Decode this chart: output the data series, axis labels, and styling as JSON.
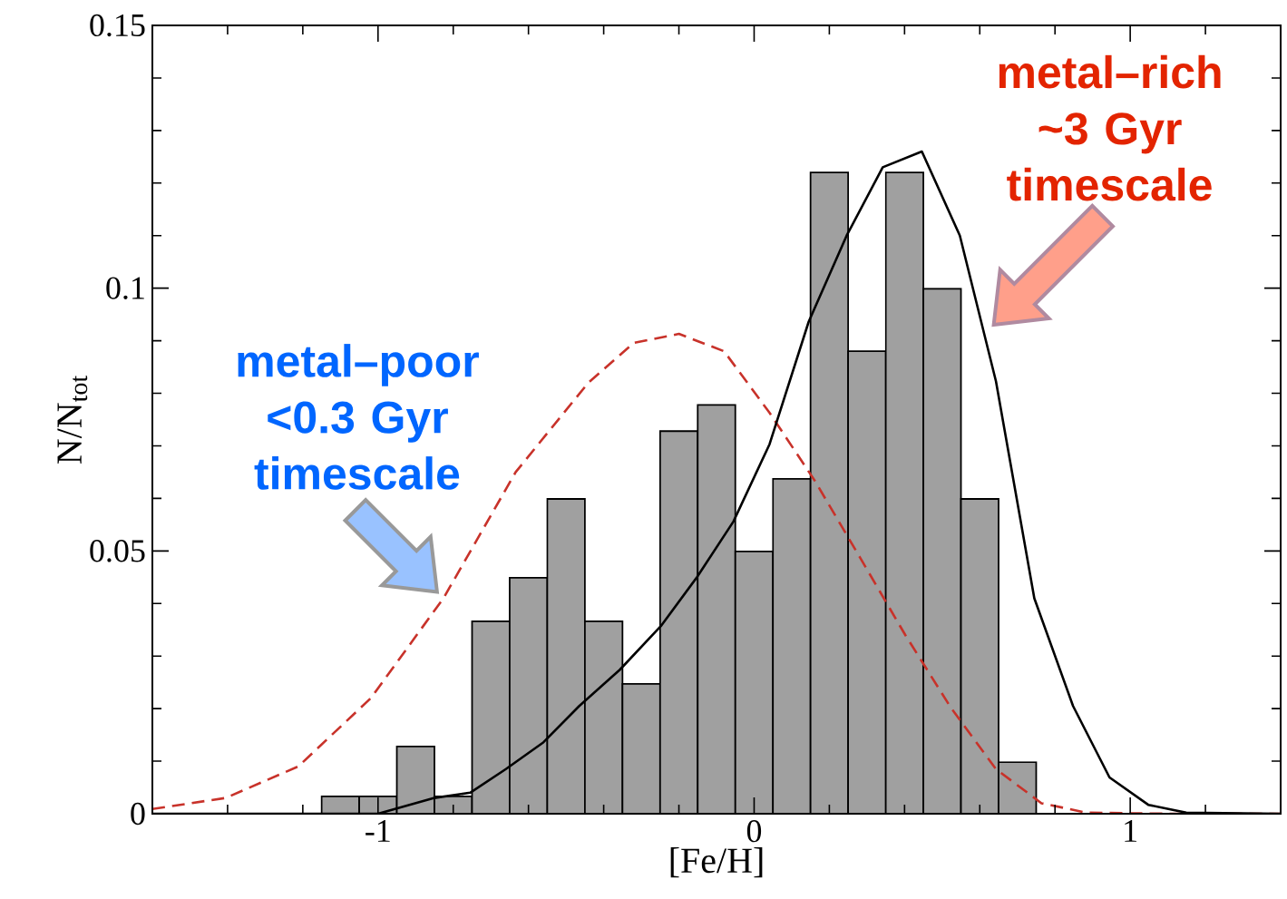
{
  "chart_data": {
    "type": "histogram",
    "xlabel": "[Fe/H]",
    "ylabel": "N/N$_{tot}$",
    "bins": [
      -1.15,
      -1.05,
      -0.95,
      -0.85,
      -0.75,
      -0.65,
      -0.55,
      -0.45,
      -0.35,
      -0.25,
      -0.15,
      -0.05,
      0.05,
      0.15,
      0.25,
      0.35,
      0.45,
      0.55,
      0.65,
      0.75
    ],
    "values": [
      0.0033,
      0.0033,
      0.0128,
      0.0033,
      0.0366,
      0.0449,
      0.0599,
      0.0366,
      0.0247,
      0.0728,
      0.0778,
      0.0499,
      0.0637,
      0.122,
      0.088,
      0.122,
      0.0999,
      0.0599,
      0.0098
    ],
    "color": "#a0a0a0",
    "series": [
      {
        "type": "line",
        "color": "#c8322a",
        "line_style": "dashed",
        "x": [
          -1.6,
          -1.405,
          -1.212,
          -1.019,
          -0.826,
          -0.634,
          -0.441,
          -0.32,
          -0.2,
          -0.08,
          0.041,
          0.161,
          0.282,
          0.402,
          0.523,
          0.643,
          0.764,
          0.884,
          1.1,
          1.4
        ],
        "values": [
          0.0009,
          0.003,
          0.009,
          0.022,
          0.041,
          0.065,
          0.082,
          0.0896,
          0.0913,
          0.088,
          0.0763,
          0.0634,
          0.0487,
          0.034,
          0.0202,
          0.0085,
          0.002,
          0.0002,
          0,
          0
        ]
      },
      {
        "type": "line",
        "color": "#000000",
        "line_style": "solid",
        "x": [
          -1.6,
          -1.0,
          -0.85,
          -0.755,
          -0.66,
          -0.56,
          -0.465,
          -0.357,
          -0.248,
          -0.152,
          -0.055,
          0.041,
          0.145,
          0.246,
          0.342,
          0.446,
          0.547,
          0.643,
          0.745,
          0.848,
          0.945,
          1.048,
          1.149,
          1.4
        ],
        "values": [
          0,
          0,
          0.003,
          0.004,
          0.0085,
          0.0136,
          0.0205,
          0.0274,
          0.0357,
          0.045,
          0.0556,
          0.0703,
          0.0936,
          0.11,
          0.123,
          0.126,
          0.11,
          0.0823,
          0.041,
          0.0205,
          0.0069,
          0.0017,
          0.0002,
          0
        ]
      }
    ],
    "xlim": [
      -1.6,
      1.4
    ],
    "xticks": [
      {
        "value": -1.4,
        "label": null
      },
      {
        "value": -1.2,
        "label": null
      },
      -1,
      {
        "value": -0.8,
        "label": null
      },
      {
        "value": -0.6,
        "label": null
      },
      {
        "value": -0.4,
        "label": null
      },
      {
        "value": -0.2,
        "label": null
      },
      0,
      {
        "value": 0.2,
        "label": null
      },
      {
        "value": 0.4,
        "label": null
      },
      {
        "value": 0.6,
        "label": null
      },
      {
        "value": 0.8,
        "label": null
      },
      1,
      {
        "value": 1.2,
        "label": null
      }
    ],
    "ylim": [
      0,
      0.15
    ],
    "yticks": [
      0,
      {
        "value": 0.01,
        "label": null
      },
      {
        "value": 0.02,
        "label": null
      },
      {
        "value": 0.03,
        "label": null
      },
      {
        "value": 0.04,
        "label": null
      },
      0.05,
      {
        "value": 0.06,
        "label": null
      },
      {
        "value": 0.07,
        "label": null
      },
      {
        "value": 0.08,
        "label": null
      },
      {
        "value": 0.09,
        "label": null
      },
      0.1,
      {
        "value": 0.11,
        "label": null
      },
      {
        "value": 0.12,
        "label": null
      },
      {
        "value": 0.13,
        "label": null
      },
      {
        "value": 0.14,
        "label": null
      },
      0.15
    ],
    "annotations": [
      {
        "text": "metal–poor <0.3 Gyr timescale",
        "x": -0.826,
        "y": 0.041
      },
      {
        "text": "metal–rich ~3 Gyr timescale",
        "x": 0.62,
        "y": 0.0918
      }
    ]
  }
}
